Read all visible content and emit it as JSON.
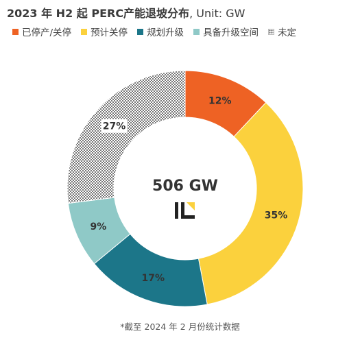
{
  "title": "2023 年 H2 起 PERC产能退坡分布",
  "title_unit": ", Unit: GW",
  "footnote": "*截至 2024 年 2 月份统计数据",
  "chart_data": {
    "type": "pie",
    "variant": "donut",
    "center_label": "506 GW",
    "categories": [
      "已停产/关停",
      "预计关停",
      "规划升级",
      "具备升级空间",
      "未定"
    ],
    "values": [
      12,
      35,
      17,
      9,
      27
    ],
    "value_labels": [
      "12%",
      "35%",
      "17%",
      "9%",
      "27%"
    ],
    "colors": [
      "#ee6224",
      "#fbd13d",
      "#1c7689",
      "#8fc9c7",
      "pattern"
    ],
    "legend_position": "top"
  },
  "logo": {
    "icon": "il-logo-icon"
  }
}
